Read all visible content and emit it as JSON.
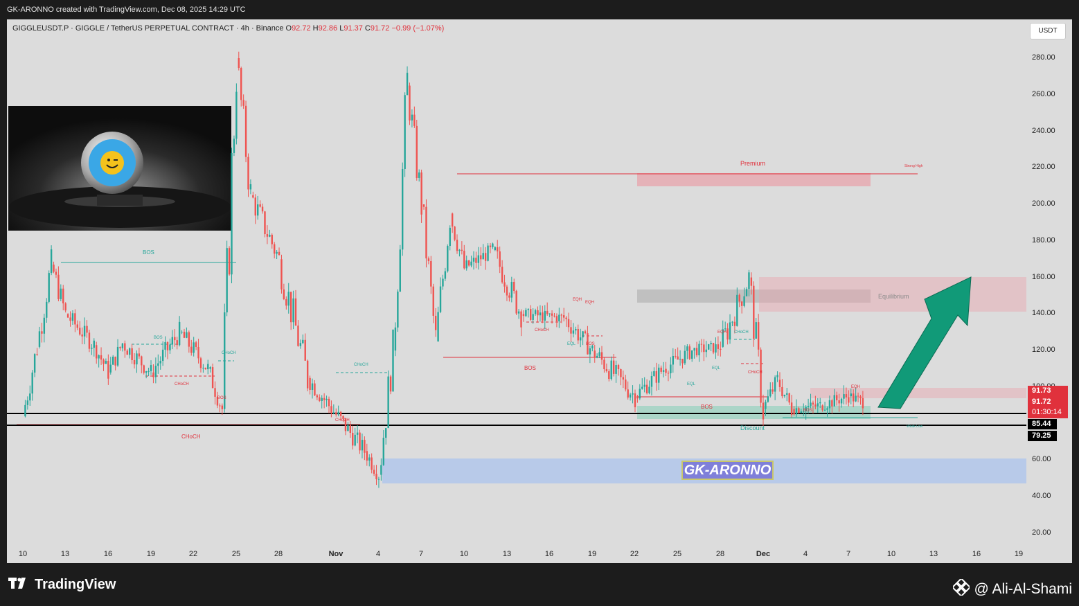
{
  "top_bar": {
    "text": "GK-ARONNO created with TradingView.com, Dec 08, 2025 14:29 UTC"
  },
  "header": {
    "symbol": "GIGGLEUSDT.P · GIGGLE / TetherUS PERPETUAL CONTRACT · 4h · Binance",
    "o_label": "O",
    "o": "92.72",
    "h_label": "H",
    "h": "92.86",
    "l_label": "L",
    "l": "91.37",
    "c_label": "C",
    "c": "91.72",
    "change": "−0.99 (−1.07%)"
  },
  "currency_button": "USDT",
  "price_axis": [
    "280.00",
    "260.00",
    "240.00",
    "220.00",
    "200.00",
    "180.00",
    "160.00",
    "140.00",
    "120.00",
    "100.00",
    "60.00",
    "40.00",
    "20.00"
  ],
  "price_tags": {
    "p1": "91.73",
    "p2": "91.72",
    "countdown": "01:30:14",
    "p3": "85.44",
    "p4": "79.25"
  },
  "time_axis": [
    "10",
    "13",
    "16",
    "19",
    "22",
    "25",
    "28",
    "Nov",
    "4",
    "7",
    "10",
    "13",
    "16",
    "19",
    "22",
    "25",
    "28",
    "Dec",
    "4",
    "7",
    "10",
    "13",
    "16",
    "19"
  ],
  "annotations": {
    "bos": "BOS",
    "choch": "CHoCH",
    "choch_alt": "CHoCH",
    "eqh": "EQH",
    "eql": "EQL",
    "premium": "Premium",
    "strong_high": "Strong High",
    "equilibrium": "Equilibrium",
    "discount": "Discount",
    "weak_low": "Weak Low",
    "brand_box": "GK-ARONNO"
  },
  "footer": {
    "logo_text": "TradingView",
    "watermark": "@ Ali-Al-Shami"
  },
  "colors": {
    "up": "#26a69a",
    "down": "#ef5350",
    "background": "#dcdcdc",
    "premium_zone": "#e8a4ac",
    "discount_zone": "#9fd3c3",
    "brand_zone": "#b4c8ea",
    "arrow": "#119a78"
  },
  "icons": [
    "tradingview-logo-icon",
    "binance-icon"
  ],
  "chart_data": {
    "type": "candlestick",
    "title": "GIGGLEUSDT.P · GIGGLE / TetherUS PERPETUAL CONTRACT · 4h · Binance",
    "ylim": [
      10,
      290
    ],
    "y_unit": "USDT",
    "last_price": 91.72,
    "levels": [
      91.73,
      85.44,
      79.25
    ],
    "price_path": [
      {
        "x": "Oct 10",
        "y": 84
      },
      {
        "x": "Oct 11",
        "y": 122
      },
      {
        "x": "Oct 12",
        "y": 167
      },
      {
        "x": "Oct 13",
        "y": 140
      },
      {
        "x": "Oct 15",
        "y": 123
      },
      {
        "x": "Oct 16",
        "y": 108
      },
      {
        "x": "Oct 17",
        "y": 124
      },
      {
        "x": "Oct 19",
        "y": 108
      },
      {
        "x": "Oct 21",
        "y": 130
      },
      {
        "x": "Oct 23",
        "y": 110
      },
      {
        "x": "Oct 24",
        "y": 88
      },
      {
        "x": "Oct 25",
        "y": 280
      },
      {
        "x": "Oct 26",
        "y": 205
      },
      {
        "x": "Oct 28",
        "y": 170
      },
      {
        "x": "Oct 30",
        "y": 105
      },
      {
        "x": "Nov 1",
        "y": 85
      },
      {
        "x": "Nov 3",
        "y": 65
      },
      {
        "x": "Nov 4",
        "y": 52
      },
      {
        "x": "Nov 5",
        "y": 120
      },
      {
        "x": "Nov 6",
        "y": 265
      },
      {
        "x": "Nov 7",
        "y": 200
      },
      {
        "x": "Nov 8",
        "y": 125
      },
      {
        "x": "Nov 9",
        "y": 195
      },
      {
        "x": "Nov 10",
        "y": 165
      },
      {
        "x": "Nov 12",
        "y": 175
      },
      {
        "x": "Nov 14",
        "y": 140
      },
      {
        "x": "Nov 17",
        "y": 138
      },
      {
        "x": "Nov 19",
        "y": 120
      },
      {
        "x": "Nov 22",
        "y": 95
      },
      {
        "x": "Nov 24",
        "y": 110
      },
      {
        "x": "Nov 26",
        "y": 120
      },
      {
        "x": "Nov 28",
        "y": 122
      },
      {
        "x": "Nov 30",
        "y": 160
      },
      {
        "x": "Dec 1",
        "y": 88
      },
      {
        "x": "Dec 2",
        "y": 104
      },
      {
        "x": "Dec 3",
        "y": 88
      },
      {
        "x": "Dec 5",
        "y": 90
      },
      {
        "x": "Dec 7",
        "y": 95
      },
      {
        "x": "Dec 8",
        "y": 91.72
      }
    ],
    "zones": [
      {
        "label": "Premium",
        "from": 210,
        "to": 216
      },
      {
        "label": "Equilibrium",
        "from": 141,
        "to": 160
      },
      {
        "label": "Discount",
        "from": 85,
        "to": 90
      }
    ]
  }
}
